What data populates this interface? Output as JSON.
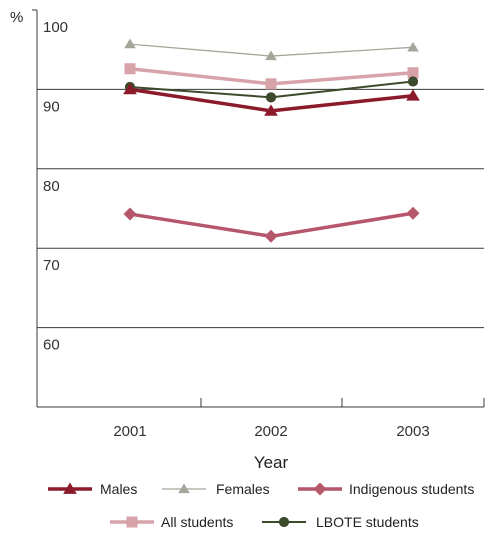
{
  "chart_data": {
    "type": "line",
    "title": "",
    "xlabel": "Year",
    "ylabel": "%",
    "categories": [
      "2001",
      "2002",
      "2003"
    ],
    "ylim": [
      50,
      100
    ],
    "yticks": [
      100,
      90,
      80,
      70,
      60
    ],
    "grid": true,
    "legend_placement": "bottom",
    "series": [
      {
        "name": "Males",
        "values": [
          90.0,
          87.3,
          89.2
        ],
        "color": "#8b1a2b",
        "marker": "triangle",
        "stroke_weight": "heavy"
      },
      {
        "name": "Females",
        "values": [
          95.7,
          94.2,
          95.3
        ],
        "color": "#a4a89a",
        "marker": "triangle",
        "stroke_weight": "light"
      },
      {
        "name": "Indigenous students",
        "values": [
          74.3,
          71.5,
          74.4
        ],
        "color": "#b5566a",
        "marker": "diamond",
        "stroke_weight": "heavy"
      },
      {
        "name": "All students",
        "values": [
          92.6,
          90.7,
          92.1
        ],
        "color": "#d7a3a9",
        "marker": "square",
        "stroke_weight": "heavy"
      },
      {
        "name": "LBOTE students",
        "values": [
          90.3,
          89.0,
          91.0
        ],
        "color": "#3d4a2c",
        "marker": "circle",
        "stroke_weight": "medium"
      }
    ]
  }
}
